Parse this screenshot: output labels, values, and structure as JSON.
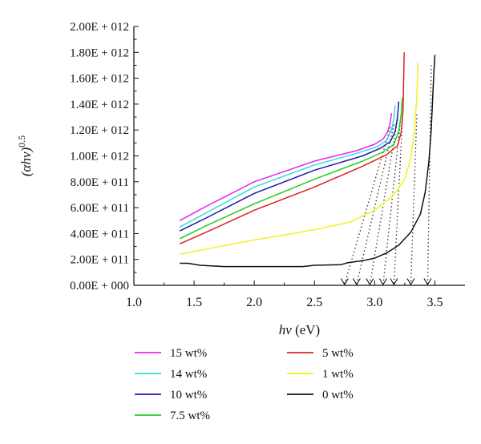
{
  "chart_data": {
    "type": "line",
    "xlabel": "hν (eV)",
    "ylabel": "(αhν)^0.5",
    "xlim": [
      1.0,
      3.75
    ],
    "ylim": [
      0,
      2000000000000.0
    ],
    "x_ticks": [
      1.0,
      1.5,
      2.0,
      2.5,
      3.0,
      3.5
    ],
    "x_tick_labels": [
      "1.0",
      "1.5",
      "2.0",
      "2.5",
      "3.0",
      "3.5"
    ],
    "y_ticks": [
      0,
      200000000000.0,
      400000000000.0,
      600000000000.0,
      800000000000.0,
      1000000000000.0,
      1200000000000.0,
      1400000000000.0,
      1600000000000.0,
      1800000000000.0,
      2000000000000.0
    ],
    "y_tick_labels": [
      "0.00E + 000",
      "2.00E + 011",
      "4.00E + 011",
      "6.00E + 011",
      "8.00E + 011",
      "1.00E + 012",
      "1.20E + 012",
      "1.40E + 012",
      "1.60E + 012",
      "1.80E + 012",
      "2.00E + 012"
    ],
    "grid": false,
    "legend_position": "bottom",
    "series": [
      {
        "name": "15 wt%",
        "color": "#ee22ee",
        "x": [
          1.38,
          1.6,
          2.0,
          2.5,
          2.85,
          3.0,
          3.07,
          3.11,
          3.13,
          3.14
        ],
        "y": [
          500000000000.0,
          610000000000.0,
          800000000000.0,
          960000000000.0,
          1040000000000.0,
          1090000000000.0,
          1130000000000.0,
          1190000000000.0,
          1260000000000.0,
          1330000000000.0
        ]
      },
      {
        "name": "14 wt%",
        "color": "#33dddd",
        "x": [
          1.38,
          1.6,
          2.0,
          2.5,
          2.85,
          3.02,
          3.1,
          3.14,
          3.16,
          3.17
        ],
        "y": [
          450000000000.0,
          560000000000.0,
          760000000000.0,
          930000000000.0,
          1020000000000.0,
          1070000000000.0,
          1120000000000.0,
          1200000000000.0,
          1290000000000.0,
          1390000000000.0
        ]
      },
      {
        "name": "10 wt%",
        "color": "#1a1aaa",
        "x": [
          1.38,
          1.6,
          2.0,
          2.5,
          2.9,
          3.05,
          3.13,
          3.17,
          3.19,
          3.2
        ],
        "y": [
          420000000000.0,
          520000000000.0,
          710000000000.0,
          890000000000.0,
          1000000000000.0,
          1060000000000.0,
          1110000000000.0,
          1190000000000.0,
          1300000000000.0,
          1420000000000.0
        ]
      },
      {
        "name": "7.5 wt%",
        "color": "#22cc22",
        "x": [
          1.38,
          1.6,
          2.0,
          2.5,
          2.9,
          3.07,
          3.16,
          3.2,
          3.22,
          3.23
        ],
        "y": [
          360000000000.0,
          460000000000.0,
          630000000000.0,
          820000000000.0,
          960000000000.0,
          1030000000000.0,
          1090000000000.0,
          1190000000000.0,
          1320000000000.0,
          1450000000000.0
        ]
      },
      {
        "name": "5 wt%",
        "color": "#dd2222",
        "x": [
          1.38,
          1.6,
          2.0,
          2.5,
          2.9,
          3.1,
          3.19,
          3.22,
          3.235,
          3.24,
          3.245
        ],
        "y": [
          320000000000.0,
          410000000000.0,
          580000000000.0,
          760000000000.0,
          920000000000.0,
          1010000000000.0,
          1080000000000.0,
          1180000000000.0,
          1350000000000.0,
          1550000000000.0,
          1800000000000.0
        ]
      },
      {
        "name": "1 wt%",
        "color": "#f2f222",
        "x": [
          1.38,
          1.6,
          2.0,
          2.5,
          2.8,
          3.0,
          3.15,
          3.25,
          3.3,
          3.33,
          3.35,
          3.36
        ],
        "y": [
          240000000000.0,
          280000000000.0,
          350000000000.0,
          430000000000.0,
          490000000000.0,
          580000000000.0,
          690000000000.0,
          820000000000.0,
          980000000000.0,
          1200000000000.0,
          1450000000000.0,
          1720000000000.0
        ]
      },
      {
        "name": "0 wt%",
        "color": "#111111",
        "x": [
          1.38,
          1.45,
          1.55,
          1.75,
          2.0,
          2.4,
          2.5,
          2.72,
          2.78,
          2.9,
          3.0,
          3.1,
          3.2,
          3.3,
          3.38,
          3.42,
          3.45,
          3.47,
          3.48,
          3.49,
          3.5
        ],
        "y": [
          170000000000.0,
          170000000000.0,
          155000000000.0,
          145000000000.0,
          145000000000.0,
          145000000000.0,
          155000000000.0,
          160000000000.0,
          175000000000.0,
          190000000000.0,
          210000000000.0,
          250000000000.0,
          310000000000.0,
          410000000000.0,
          550000000000.0,
          720000000000.0,
          950000000000.0,
          1200000000000.0,
          1420000000000.0,
          1620000000000.0,
          1780000000000.0
        ]
      }
    ],
    "tangent_lines": [
      {
        "series": "15 wt%",
        "from": [
          3.13,
          1220000000000.0
        ],
        "to": [
          2.75,
          0
        ]
      },
      {
        "series": "14 wt%",
        "from": [
          3.16,
          1240000000000.0
        ],
        "to": [
          2.85,
          0
        ]
      },
      {
        "series": "10 wt%",
        "from": [
          3.19,
          1280000000000.0
        ],
        "to": [
          2.96,
          0
        ]
      },
      {
        "series": "7.5 wt%",
        "from": [
          3.22,
          1320000000000.0
        ],
        "to": [
          3.07,
          0
        ]
      },
      {
        "series": "5 wt%",
        "from": [
          3.235,
          1360000000000.0
        ],
        "to": [
          3.16,
          0
        ]
      },
      {
        "series": "1 wt%",
        "from": [
          3.35,
          1320000000000.0
        ],
        "to": [
          3.3,
          0
        ]
      },
      {
        "series": "0 wt%",
        "from": [
          3.47,
          1700000000000.0
        ],
        "to": [
          3.44,
          0
        ]
      }
    ]
  }
}
